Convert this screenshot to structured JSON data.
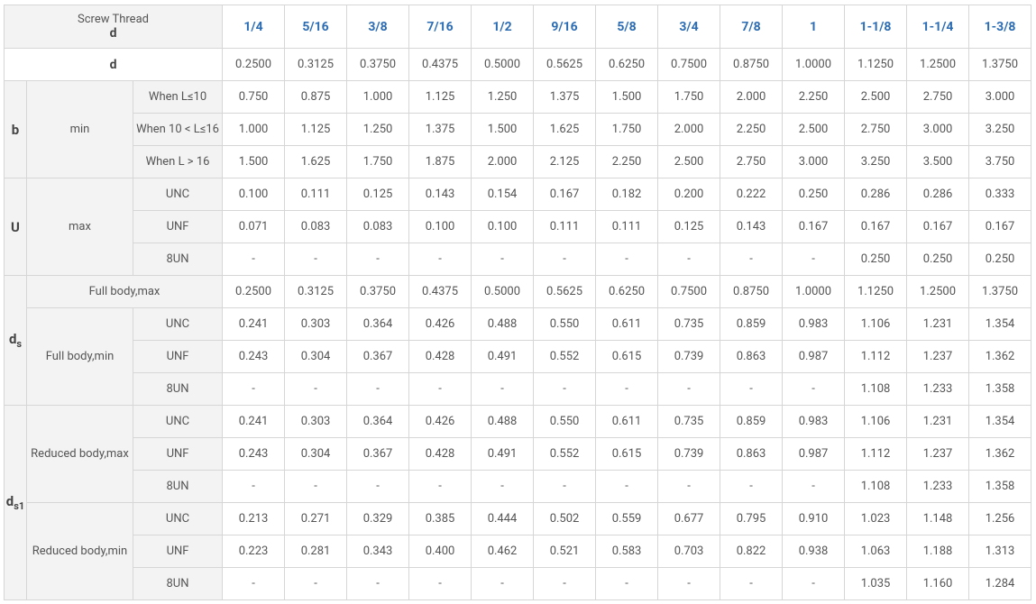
{
  "table": {
    "header": {
      "label_top": "Screw Thread",
      "label_bottom": "d",
      "sizes": [
        "1/4",
        "5/16",
        "3/8",
        "7/16",
        "1/2",
        "9/16",
        "5/8",
        "3/4",
        "7/8",
        "1",
        "1-1/8",
        "1-1/4",
        "1-3/8"
      ]
    },
    "d_row": {
      "label": "d",
      "values": [
        "0.2500",
        "0.3125",
        "0.3750",
        "0.4375",
        "0.5000",
        "0.5625",
        "0.6250",
        "0.7500",
        "0.8750",
        "1.0000",
        "1.1250",
        "1.2500",
        "1.3750"
      ]
    },
    "groups": [
      {
        "symbol": {
          "main": "b"
        },
        "subgroups": [
          {
            "label": "min",
            "rows": [
              {
                "label": "When L≤10",
                "values": [
                  "0.750",
                  "0.875",
                  "1.000",
                  "1.125",
                  "1.250",
                  "1.375",
                  "1.500",
                  "1.750",
                  "2.000",
                  "2.250",
                  "2.500",
                  "2.750",
                  "3.000"
                ]
              },
              {
                "label": "When 10 < L≤16",
                "values": [
                  "1.000",
                  "1.125",
                  "1.250",
                  "1.375",
                  "1.500",
                  "1.625",
                  "1.750",
                  "2.000",
                  "2.250",
                  "2.500",
                  "2.750",
                  "3.000",
                  "3.250"
                ]
              },
              {
                "label": "When L > 16",
                "values": [
                  "1.500",
                  "1.625",
                  "1.750",
                  "1.875",
                  "2.000",
                  "2.125",
                  "2.250",
                  "2.500",
                  "2.750",
                  "3.000",
                  "3.250",
                  "3.500",
                  "3.750"
                ]
              }
            ]
          }
        ]
      },
      {
        "symbol": {
          "main": "U"
        },
        "subgroups": [
          {
            "label": "max",
            "rows": [
              {
                "label": "UNC",
                "values": [
                  "0.100",
                  "0.111",
                  "0.125",
                  "0.143",
                  "0.154",
                  "0.167",
                  "0.182",
                  "0.200",
                  "0.222",
                  "0.250",
                  "0.286",
                  "0.286",
                  "0.333"
                ]
              },
              {
                "label": "UNF",
                "values": [
                  "0.071",
                  "0.083",
                  "0.083",
                  "0.100",
                  "0.100",
                  "0.111",
                  "0.111",
                  "0.125",
                  "0.143",
                  "0.167",
                  "0.167",
                  "0.167",
                  "0.167"
                ]
              },
              {
                "label": "8UN",
                "values": [
                  "-",
                  "-",
                  "-",
                  "-",
                  "-",
                  "-",
                  "-",
                  "-",
                  "-",
                  "-",
                  "0.250",
                  "0.250",
                  "0.250"
                ]
              }
            ]
          }
        ]
      },
      {
        "symbol": {
          "main": "d",
          "sub": "s"
        },
        "subgroups": [
          {
            "label": "Full body,max",
            "rows": [
              {
                "values": [
                  "0.2500",
                  "0.3125",
                  "0.3750",
                  "0.4375",
                  "0.5000",
                  "0.5625",
                  "0.6250",
                  "0.7500",
                  "0.8750",
                  "1.0000",
                  "1.1250",
                  "1.2500",
                  "1.3750"
                ]
              }
            ]
          },
          {
            "label": "Full body,min",
            "rows": [
              {
                "label": "UNC",
                "values": [
                  "0.241",
                  "0.303",
                  "0.364",
                  "0.426",
                  "0.488",
                  "0.550",
                  "0.611",
                  "0.735",
                  "0.859",
                  "0.983",
                  "1.106",
                  "1.231",
                  "1.354"
                ]
              },
              {
                "label": "UNF",
                "values": [
                  "0.243",
                  "0.304",
                  "0.367",
                  "0.428",
                  "0.491",
                  "0.552",
                  "0.615",
                  "0.739",
                  "0.863",
                  "0.987",
                  "1.112",
                  "1.237",
                  "1.362"
                ]
              },
              {
                "label": "8UN",
                "values": [
                  "-",
                  "-",
                  "-",
                  "-",
                  "-",
                  "-",
                  "-",
                  "-",
                  "-",
                  "-",
                  "1.108",
                  "1.233",
                  "1.358"
                ]
              }
            ]
          }
        ]
      },
      {
        "symbol": {
          "main": "d",
          "sub": "s1"
        },
        "subgroups": [
          {
            "label": "Reduced body,max",
            "rows": [
              {
                "label": "UNC",
                "values": [
                  "0.241",
                  "0.303",
                  "0.364",
                  "0.426",
                  "0.488",
                  "0.550",
                  "0.611",
                  "0.735",
                  "0.859",
                  "0.983",
                  "1.106",
                  "1.231",
                  "1.354"
                ]
              },
              {
                "label": "UNF",
                "values": [
                  "0.243",
                  "0.304",
                  "0.367",
                  "0.428",
                  "0.491",
                  "0.552",
                  "0.615",
                  "0.739",
                  "0.863",
                  "0.987",
                  "1.112",
                  "1.237",
                  "1.362"
                ]
              },
              {
                "label": "8UN",
                "values": [
                  "-",
                  "-",
                  "-",
                  "-",
                  "-",
                  "-",
                  "-",
                  "-",
                  "-",
                  "-",
                  "1.108",
                  "1.233",
                  "1.358"
                ]
              }
            ]
          },
          {
            "label": "Reduced body,min",
            "rows": [
              {
                "label": "UNC",
                "values": [
                  "0.213",
                  "0.271",
                  "0.329",
                  "0.385",
                  "0.444",
                  "0.502",
                  "0.559",
                  "0.677",
                  "0.795",
                  "0.910",
                  "1.023",
                  "1.148",
                  "1.256"
                ]
              },
              {
                "label": "UNF",
                "values": [
                  "0.223",
                  "0.281",
                  "0.343",
                  "0.400",
                  "0.462",
                  "0.521",
                  "0.583",
                  "0.703",
                  "0.822",
                  "0.938",
                  "1.063",
                  "1.188",
                  "1.313"
                ]
              },
              {
                "label": "8UN",
                "values": [
                  "-",
                  "-",
                  "-",
                  "-",
                  "-",
                  "-",
                  "-",
                  "-",
                  "-",
                  "-",
                  "1.035",
                  "1.160",
                  "1.284"
                ]
              }
            ]
          }
        ]
      }
    ]
  }
}
